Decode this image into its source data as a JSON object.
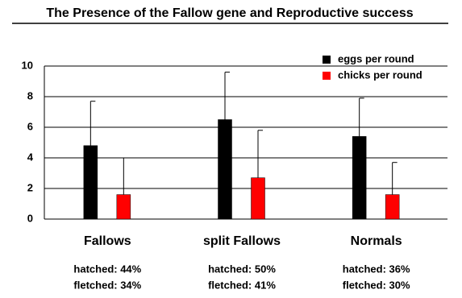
{
  "chart_data": {
    "type": "bar",
    "title": "The Presence of the Fallow gene and Reproductive success",
    "categories": [
      "Fallows",
      "split Fallows",
      "Normals"
    ],
    "series": [
      {
        "name": "eggs per round",
        "color": "#000000",
        "values": [
          4.8,
          6.5,
          5.4
        ],
        "errors": [
          2.9,
          3.1,
          2.5
        ]
      },
      {
        "name": "chicks per round",
        "color": "#ff0000",
        "values": [
          1.6,
          2.7,
          1.6
        ],
        "errors": [
          2.4,
          3.1,
          2.1
        ]
      }
    ],
    "annotations": [
      [
        "hatched: 44%",
        "fletched: 34%"
      ],
      [
        "hatched: 50%",
        "fletched: 41%"
      ],
      [
        "hatched: 36%",
        "fletched: 30%"
      ]
    ],
    "ylim": [
      0,
      10
    ],
    "yticks": [
      0,
      2,
      4,
      6,
      8,
      10
    ],
    "grid": true,
    "legend": "top-right"
  }
}
